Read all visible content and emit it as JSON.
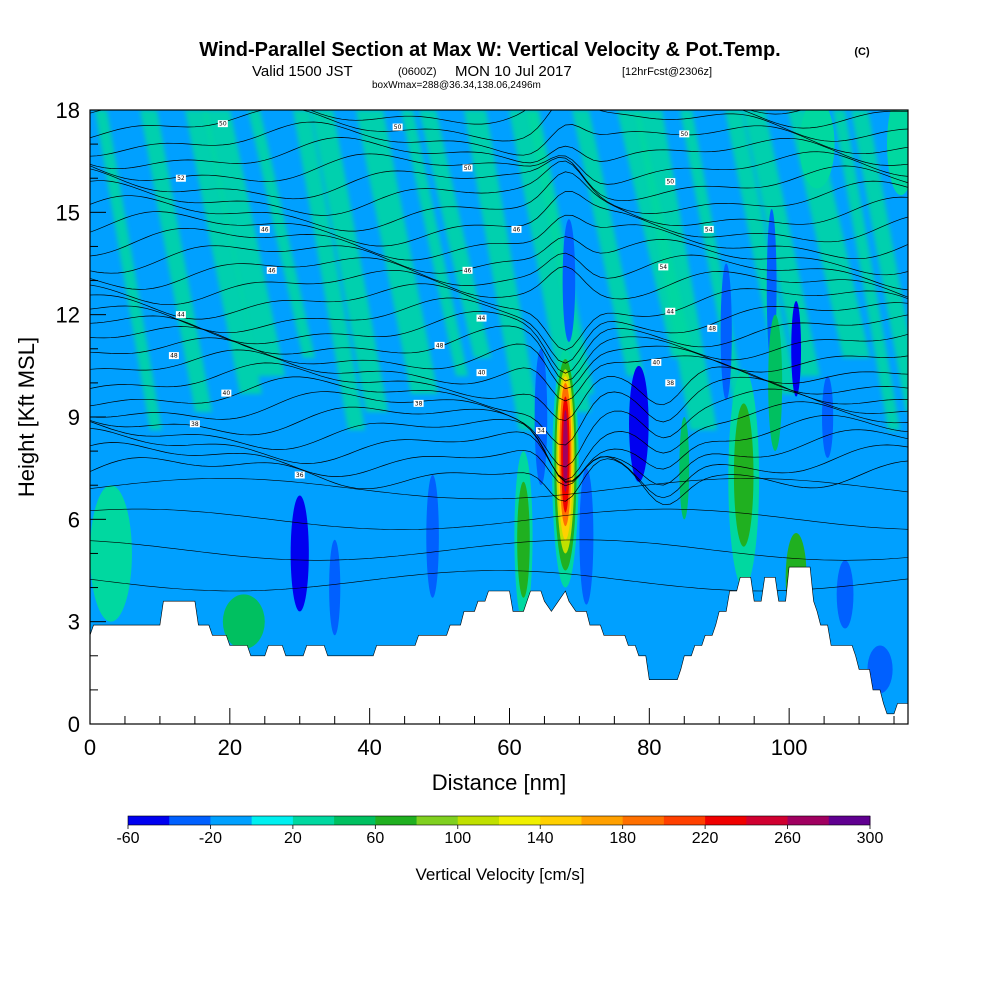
{
  "title": {
    "main": "Wind-Parallel Section at Max W: Vertical Velocity & Pot.Temp.",
    "copyright": "(C)",
    "valid_prefix": "Valid 1500 JST",
    "valid_zulu": "(0600Z)",
    "valid_date": "MON 10 Jul 2017",
    "forecast": "[12hrFcst@2306z]",
    "boxwmax": "boxWmax=288@36.34,138.06,2496m"
  },
  "chart_data": {
    "type": "heatmap",
    "xlabel": "Distance [nm]",
    "ylabel": "Height [Kft MSL]",
    "xlim": [
      0,
      117
    ],
    "ylim": [
      0,
      18
    ],
    "x_ticks": [
      0,
      20,
      40,
      60,
      80,
      100
    ],
    "y_ticks": [
      0,
      3,
      6,
      9,
      12,
      15,
      18
    ],
    "colorbar": {
      "title": "Vertical Velocity [cm/s]",
      "tick_labels": [
        "-60",
        "-20",
        "20",
        "60",
        "100",
        "140",
        "180",
        "220",
        "260",
        "300"
      ],
      "boundaries": [
        -60,
        -40,
        -20,
        0,
        20,
        40,
        60,
        80,
        100,
        120,
        140,
        160,
        180,
        200,
        220,
        240,
        260,
        280,
        300
      ],
      "colors": [
        "#0000f0",
        "#0060ff",
        "#00a0ff",
        "#00f0f0",
        "#00d8a0",
        "#00c060",
        "#20b020",
        "#80d020",
        "#c0e000",
        "#f0f000",
        "#ffd000",
        "#ffa000",
        "#ff7000",
        "#ff4000",
        "#f00000",
        "#d00030",
        "#a00060",
        "#600090"
      ]
    },
    "background_color": "#00a0ff",
    "terrain_profile": [
      [
        0,
        2.6
      ],
      [
        0.5,
        2.9
      ],
      [
        10,
        2.9
      ],
      [
        10.5,
        3.6
      ],
      [
        15,
        3.6
      ],
      [
        15.5,
        2.9
      ],
      [
        17,
        2.9
      ],
      [
        17.5,
        2.6
      ],
      [
        19.5,
        2.6
      ],
      [
        20,
        2.3
      ],
      [
        22.5,
        2.3
      ],
      [
        23,
        2.0
      ],
      [
        25,
        2.0
      ],
      [
        25.5,
        2.3
      ],
      [
        27.5,
        2.3
      ],
      [
        28,
        2.0
      ],
      [
        30.5,
        2.0
      ],
      [
        31,
        2.3
      ],
      [
        33.5,
        2.3
      ],
      [
        34,
        2.0
      ],
      [
        40.5,
        2.0
      ],
      [
        41,
        2.3
      ],
      [
        46.5,
        2.3
      ],
      [
        47,
        2.6
      ],
      [
        51,
        2.6
      ],
      [
        51.5,
        2.9
      ],
      [
        53,
        2.9
      ],
      [
        53.5,
        3.3
      ],
      [
        55,
        3.3
      ],
      [
        55.5,
        3.6
      ],
      [
        56.5,
        3.6
      ],
      [
        57,
        3.9
      ],
      [
        60,
        3.9
      ],
      [
        60.5,
        3.3
      ],
      [
        62,
        3.3
      ],
      [
        62.5,
        3.6
      ],
      [
        63,
        3.9
      ],
      [
        64.5,
        3.9
      ],
      [
        65,
        3.6
      ],
      [
        66,
        3.3
      ],
      [
        67,
        3.6
      ],
      [
        68,
        3.9
      ],
      [
        68.5,
        3.6
      ],
      [
        69.5,
        3.3
      ],
      [
        71,
        3.3
      ],
      [
        71.5,
        2.9
      ],
      [
        73,
        2.9
      ],
      [
        73.5,
        2.6
      ],
      [
        76.5,
        2.6
      ],
      [
        77,
        2.3
      ],
      [
        78,
        2.3
      ],
      [
        78.5,
        2.0
      ],
      [
        79.5,
        2.0
      ],
      [
        80,
        1.3
      ],
      [
        84,
        1.3
      ],
      [
        84.5,
        1.6
      ],
      [
        85,
        2.0
      ],
      [
        86,
        2.0
      ],
      [
        86.5,
        2.3
      ],
      [
        87.5,
        2.3
      ],
      [
        88,
        2.6
      ],
      [
        89,
        2.6
      ],
      [
        89.5,
        2.9
      ],
      [
        90,
        3.3
      ],
      [
        91,
        3.3
      ],
      [
        91.5,
        3.9
      ],
      [
        92.5,
        3.9
      ],
      [
        93,
        4.3
      ],
      [
        94.5,
        4.3
      ],
      [
        95,
        3.6
      ],
      [
        96,
        3.6
      ],
      [
        96.5,
        4.3
      ],
      [
        98,
        4.3
      ],
      [
        98.5,
        3.6
      ],
      [
        99.5,
        3.6
      ],
      [
        100,
        4.6
      ],
      [
        103,
        4.6
      ],
      [
        103.5,
        3.6
      ],
      [
        104,
        3.3
      ],
      [
        104.5,
        2.9
      ],
      [
        105.5,
        2.9
      ],
      [
        106,
        2.3
      ],
      [
        109,
        2.3
      ],
      [
        109.5,
        2.0
      ],
      [
        110,
        1.6
      ],
      [
        111.5,
        1.6
      ],
      [
        112,
        1.0
      ],
      [
        113,
        1.0
      ],
      [
        113.5,
        0.6
      ],
      [
        114,
        0.3
      ],
      [
        115,
        0.3
      ],
      [
        115.5,
        0.6
      ],
      [
        117,
        0.6
      ]
    ],
    "updraft_core": {
      "x": 68,
      "ymin": 4.0,
      "ymax": 10.9,
      "max_value": 288
    },
    "vertical_velocity_features": [
      {
        "x": 68,
        "y": 7.5,
        "rx": 1.9,
        "ry": 3.5,
        "value": 20
      },
      {
        "x": 68,
        "y": 7.6,
        "rx": 1.6,
        "ry": 3.1,
        "value": 60
      },
      {
        "x": 68,
        "y": 7.7,
        "rx": 1.3,
        "ry": 2.7,
        "value": 100
      },
      {
        "x": 68,
        "y": 7.8,
        "rx": 1.05,
        "ry": 2.4,
        "value": 140
      },
      {
        "x": 68,
        "y": 7.9,
        "rx": 0.85,
        "ry": 2.1,
        "value": 180
      },
      {
        "x": 68,
        "y": 7.9,
        "rx": 0.6,
        "ry": 1.7,
        "value": 220
      },
      {
        "x": 68,
        "y": 8.0,
        "rx": 0.35,
        "ry": 1.2,
        "value": 260
      },
      {
        "x": 62,
        "y": 5.5,
        "rx": 1.3,
        "ry": 2.5,
        "value": 20
      },
      {
        "x": 62,
        "y": 5.4,
        "rx": 0.9,
        "ry": 1.7,
        "value": 60
      },
      {
        "x": 93.5,
        "y": 7.2,
        "rx": 2.2,
        "ry": 3.2,
        "value": 20
      },
      {
        "x": 93.5,
        "y": 7.3,
        "rx": 1.4,
        "ry": 2.1,
        "value": 60
      },
      {
        "x": 101,
        "y": 4.3,
        "rx": 1.5,
        "ry": 1.3,
        "value": 60
      },
      {
        "x": 30,
        "y": 5.0,
        "rx": 1.3,
        "ry": 1.7,
        "value": -60
      },
      {
        "x": 35,
        "y": 4.0,
        "rx": 0.8,
        "ry": 1.4,
        "value": -40
      },
      {
        "x": 49,
        "y": 5.5,
        "rx": 0.9,
        "ry": 1.8,
        "value": -40
      },
      {
        "x": 64.5,
        "y": 9.0,
        "rx": 0.9,
        "ry": 2.0,
        "value": -40
      },
      {
        "x": 71,
        "y": 5.5,
        "rx": 1.0,
        "ry": 2.0,
        "value": -40
      },
      {
        "x": 78.5,
        "y": 8.8,
        "rx": 1.4,
        "ry": 1.7,
        "value": -60
      },
      {
        "x": 91,
        "y": 11.5,
        "rx": 0.8,
        "ry": 2.0,
        "value": -40
      },
      {
        "x": 97.5,
        "y": 12.8,
        "rx": 0.7,
        "ry": 2.3,
        "value": -40
      },
      {
        "x": 101,
        "y": 11.0,
        "rx": 0.7,
        "ry": 1.4,
        "value": -60
      },
      {
        "x": 105.5,
        "y": 9.0,
        "rx": 0.8,
        "ry": 1.2,
        "value": -40
      },
      {
        "x": 68.5,
        "y": 13.0,
        "rx": 0.9,
        "ry": 1.8,
        "value": -40
      },
      {
        "x": 108,
        "y": 3.8,
        "rx": 1.2,
        "ry": 1.0,
        "value": -40
      },
      {
        "x": 113,
        "y": 1.6,
        "rx": 1.8,
        "ry": 0.7,
        "value": -40
      },
      {
        "x": 116,
        "y": 17.0,
        "rx": 2.0,
        "ry": 1.5,
        "value": 20
      },
      {
        "x": 104,
        "y": 17.0,
        "rx": 2.5,
        "ry": 1.3,
        "value": 20
      },
      {
        "x": 98,
        "y": 10.0,
        "rx": 1.0,
        "ry": 2.0,
        "value": 40
      },
      {
        "x": 85,
        "y": 7.5,
        "rx": 0.7,
        "ry": 1.5,
        "value": 40
      },
      {
        "x": 3,
        "y": 5.0,
        "rx": 3.0,
        "ry": 2.0,
        "value": 20
      },
      {
        "x": 22,
        "y": 3.0,
        "rx": 3.0,
        "ry": 0.8,
        "value": 40
      }
    ],
    "streak_value": 20,
    "potential_temperature_contours": {
      "interval": 2,
      "labels": [
        {
          "x": 19,
          "y": 17.6,
          "text": "50"
        },
        {
          "x": 44,
          "y": 17.5,
          "text": "50"
        },
        {
          "x": 85,
          "y": 17.3,
          "text": "50"
        },
        {
          "x": 13,
          "y": 16.0,
          "text": "52"
        },
        {
          "x": 54,
          "y": 16.3,
          "text": "50"
        },
        {
          "x": 83,
          "y": 15.9,
          "text": "50"
        },
        {
          "x": 25,
          "y": 14.5,
          "text": "46"
        },
        {
          "x": 61,
          "y": 14.5,
          "text": "46"
        },
        {
          "x": 88.5,
          "y": 14.5,
          "text": "54"
        },
        {
          "x": 26,
          "y": 13.3,
          "text": "46"
        },
        {
          "x": 54,
          "y": 13.3,
          "text": "46"
        },
        {
          "x": 82,
          "y": 13.4,
          "text": "54"
        },
        {
          "x": 13,
          "y": 12.0,
          "text": "44"
        },
        {
          "x": 56,
          "y": 11.9,
          "text": "44"
        },
        {
          "x": 83,
          "y": 12.1,
          "text": "44"
        },
        {
          "x": 89,
          "y": 11.6,
          "text": "48"
        },
        {
          "x": 50,
          "y": 11.1,
          "text": "48"
        },
        {
          "x": 12,
          "y": 10.8,
          "text": "48"
        },
        {
          "x": 56,
          "y": 10.3,
          "text": "40"
        },
        {
          "x": 81,
          "y": 10.6,
          "text": "40"
        },
        {
          "x": 83,
          "y": 10.0,
          "text": "38"
        },
        {
          "x": 19.5,
          "y": 9.7,
          "text": "40"
        },
        {
          "x": 47,
          "y": 9.4,
          "text": "38"
        },
        {
          "x": 15,
          "y": 8.8,
          "text": "38"
        },
        {
          "x": 64.5,
          "y": 8.6,
          "text": "34"
        },
        {
          "x": 30,
          "y": 7.3,
          "text": "36"
        }
      ]
    }
  }
}
